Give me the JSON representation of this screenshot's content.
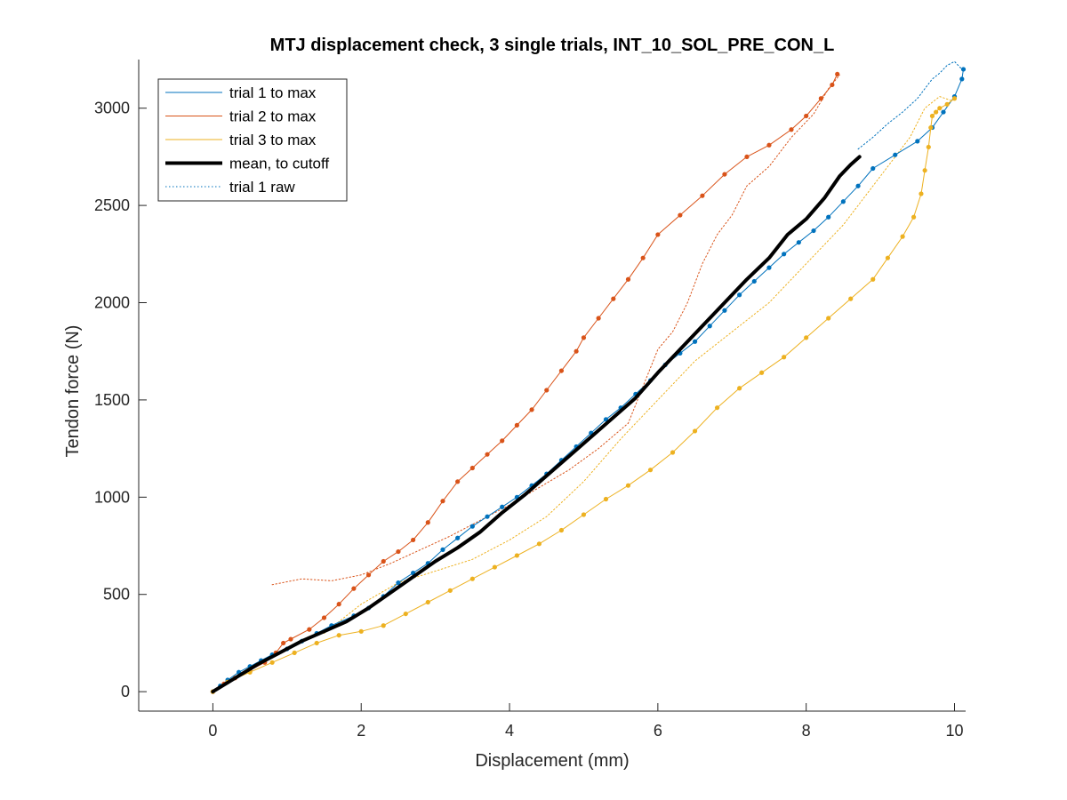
{
  "chart_data": {
    "type": "line",
    "title": "MTJ displacement check, 3 single trials, INT_10_SOL_PRE_CON_L",
    "xlabel": "Displacement (mm)",
    "ylabel": "Tendon force (N)",
    "xlim": [
      -1,
      10.15
    ],
    "ylim": [
      -100,
      3250
    ],
    "xticks": [
      0,
      2,
      4,
      6,
      8,
      10
    ],
    "yticks": [
      0,
      500,
      1000,
      1500,
      2000,
      2500,
      3000
    ],
    "grid": false,
    "legend_position": "top-left",
    "series": [
      {
        "name": "trial 1 to max",
        "color": "#0072BD",
        "style": "solid",
        "width": 1,
        "x": [
          0,
          0.1,
          0.2,
          0.35,
          0.5,
          0.65,
          0.8,
          1.0,
          1.2,
          1.4,
          1.6,
          1.9,
          2.1,
          2.3,
          2.5,
          2.7,
          2.9,
          3.1,
          3.3,
          3.5,
          3.7,
          3.9,
          4.1,
          4.3,
          4.5,
          4.7,
          4.9,
          5.1,
          5.3,
          5.5,
          5.7,
          5.9,
          6.1,
          6.3,
          6.5,
          6.7,
          6.9,
          7.1,
          7.3,
          7.5,
          7.7,
          7.9,
          8.1,
          8.3,
          8.5,
          8.7,
          8.9,
          9.2,
          9.5,
          9.7,
          9.85,
          10.0,
          10.1,
          10.12
        ],
        "y": [
          0,
          30,
          60,
          100,
          130,
          160,
          190,
          220,
          260,
          300,
          340,
          390,
          430,
          490,
          560,
          610,
          660,
          730,
          790,
          850,
          900,
          950,
          1000,
          1060,
          1120,
          1190,
          1260,
          1330,
          1400,
          1460,
          1530,
          1600,
          1680,
          1740,
          1800,
          1880,
          1960,
          2040,
          2110,
          2180,
          2250,
          2310,
          2370,
          2440,
          2520,
          2600,
          2690,
          2760,
          2830,
          2900,
          2980,
          3060,
          3150,
          3200
        ]
      },
      {
        "name": "trial 2 to max",
        "color": "#D95319",
        "style": "solid",
        "width": 1,
        "x": [
          0,
          0.15,
          0.3,
          0.5,
          0.7,
          0.85,
          0.95,
          1.05,
          1.3,
          1.5,
          1.7,
          1.9,
          2.1,
          2.3,
          2.5,
          2.7,
          2.9,
          3.1,
          3.3,
          3.5,
          3.7,
          3.9,
          4.1,
          4.3,
          4.5,
          4.7,
          4.9,
          5.0,
          5.2,
          5.4,
          5.6,
          5.8,
          6.0,
          6.3,
          6.6,
          6.9,
          7.2,
          7.5,
          7.8,
          8.0,
          8.2,
          8.35,
          8.42
        ],
        "y": [
          0,
          40,
          70,
          110,
          150,
          200,
          250,
          270,
          320,
          380,
          450,
          530,
          600,
          670,
          720,
          780,
          870,
          980,
          1080,
          1150,
          1220,
          1290,
          1370,
          1450,
          1550,
          1650,
          1750,
          1820,
          1920,
          2020,
          2120,
          2230,
          2350,
          2450,
          2550,
          2660,
          2750,
          2810,
          2890,
          2960,
          3050,
          3120,
          3175
        ]
      },
      {
        "name": "trial 3 to max",
        "color": "#EDB120",
        "style": "solid",
        "width": 1,
        "x": [
          0,
          0.2,
          0.5,
          0.8,
          1.1,
          1.4,
          1.7,
          2.0,
          2.3,
          2.6,
          2.9,
          3.2,
          3.5,
          3.8,
          4.1,
          4.4,
          4.7,
          5.0,
          5.3,
          5.6,
          5.9,
          6.2,
          6.5,
          6.8,
          7.1,
          7.4,
          7.7,
          8.0,
          8.3,
          8.6,
          8.9,
          9.1,
          9.3,
          9.45,
          9.55,
          9.6,
          9.65,
          9.68,
          9.7,
          9.75,
          9.8,
          9.9,
          10.0
        ],
        "y": [
          0,
          50,
          100,
          150,
          200,
          250,
          290,
          310,
          340,
          400,
          460,
          520,
          580,
          640,
          700,
          760,
          830,
          910,
          990,
          1060,
          1140,
          1230,
          1340,
          1460,
          1560,
          1640,
          1720,
          1820,
          1920,
          2020,
          2120,
          2230,
          2340,
          2440,
          2560,
          2680,
          2800,
          2900,
          2960,
          2980,
          3000,
          3020,
          3050
        ]
      },
      {
        "name": "mean, to cutoff",
        "color": "#000000",
        "style": "solid",
        "width": 4,
        "x": [
          0,
          0.3,
          0.6,
          0.9,
          1.2,
          1.5,
          1.8,
          2.1,
          2.4,
          2.7,
          3.0,
          3.3,
          3.6,
          3.9,
          4.2,
          4.5,
          4.8,
          5.1,
          5.4,
          5.7,
          6.0,
          6.3,
          6.6,
          6.9,
          7.2,
          7.5,
          7.75,
          8.0,
          8.25,
          8.45,
          8.6,
          8.72
        ],
        "y": [
          0,
          70,
          140,
          200,
          260,
          310,
          360,
          430,
          510,
          590,
          670,
          740,
          820,
          920,
          1010,
          1110,
          1210,
          1310,
          1410,
          1510,
          1640,
          1760,
          1880,
          2000,
          2120,
          2230,
          2350,
          2430,
          2540,
          2650,
          2710,
          2750
        ]
      },
      {
        "name": "trial 1 raw",
        "color": "#0072BD",
        "style": "dotted",
        "width": 1,
        "x": [
          8.7,
          8.9,
          9.1,
          9.3,
          9.5,
          9.6,
          9.7,
          9.8,
          9.9,
          10.0,
          10.1
        ],
        "y": [
          2790,
          2850,
          2920,
          2980,
          3050,
          3100,
          3150,
          3180,
          3220,
          3240,
          3200
        ]
      },
      {
        "name": "",
        "color": "#D95319",
        "style": "dotted",
        "width": 1,
        "x": [
          0.8,
          1.2,
          1.6,
          2.0,
          2.4,
          2.8,
          3.2,
          3.6,
          4.0,
          4.4,
          4.8,
          5.2,
          5.6,
          6.0,
          6.2,
          6.4,
          6.6,
          6.8,
          7.0,
          7.2,
          7.5,
          7.8,
          8.1,
          8.3,
          8.45
        ],
        "y": [
          550,
          580,
          570,
          600,
          660,
          730,
          800,
          880,
          960,
          1050,
          1140,
          1250,
          1380,
          1760,
          1850,
          2000,
          2200,
          2350,
          2450,
          2600,
          2700,
          2850,
          2970,
          3100,
          3170
        ]
      },
      {
        "name": "",
        "color": "#EDB120",
        "style": "dotted",
        "width": 1,
        "x": [
          1.5,
          2.0,
          2.5,
          3.0,
          3.5,
          4.0,
          4.5,
          5.0,
          5.5,
          6.0,
          6.5,
          7.0,
          7.5,
          8.0,
          8.5,
          9.0,
          9.4,
          9.6,
          9.8,
          9.95
        ],
        "y": [
          300,
          450,
          560,
          620,
          680,
          780,
          900,
          1080,
          1300,
          1500,
          1700,
          1850,
          2000,
          2200,
          2400,
          2650,
          2850,
          3000,
          3060,
          3040
        ]
      }
    ]
  }
}
